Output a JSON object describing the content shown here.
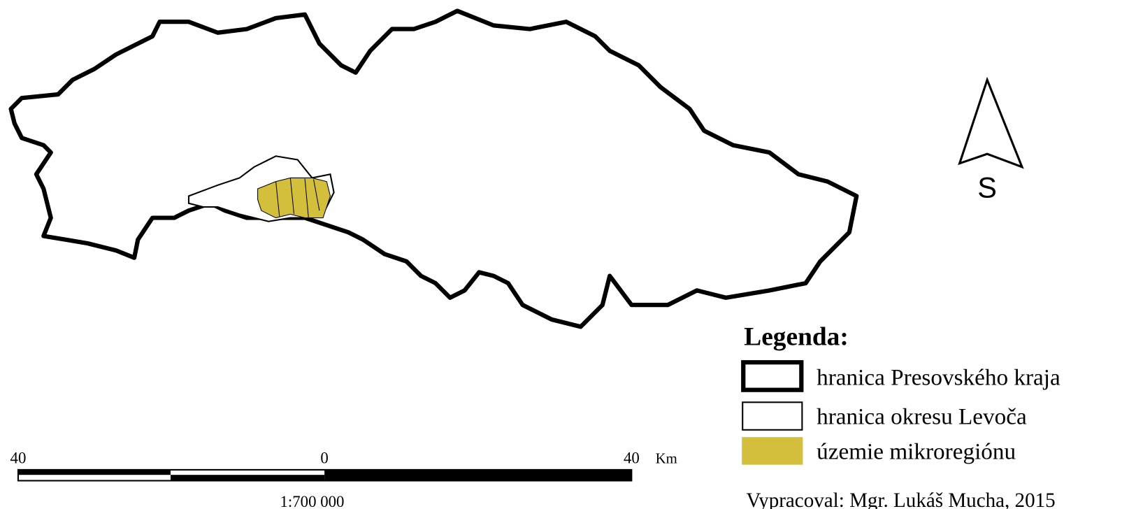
{
  "north": {
    "label": "S"
  },
  "legend": {
    "title": "Legenda:",
    "items": [
      "hranica Presovského kraja",
      "hranica okresu Levoča",
      "územie mikroregiónu"
    ]
  },
  "scale": {
    "ticks": [
      "40",
      "0",
      "40"
    ],
    "unit": "Km",
    "ratio": "1:700 000"
  },
  "credit": "Vypracoval: Mgr. Lukáš Mucha, 2015"
}
